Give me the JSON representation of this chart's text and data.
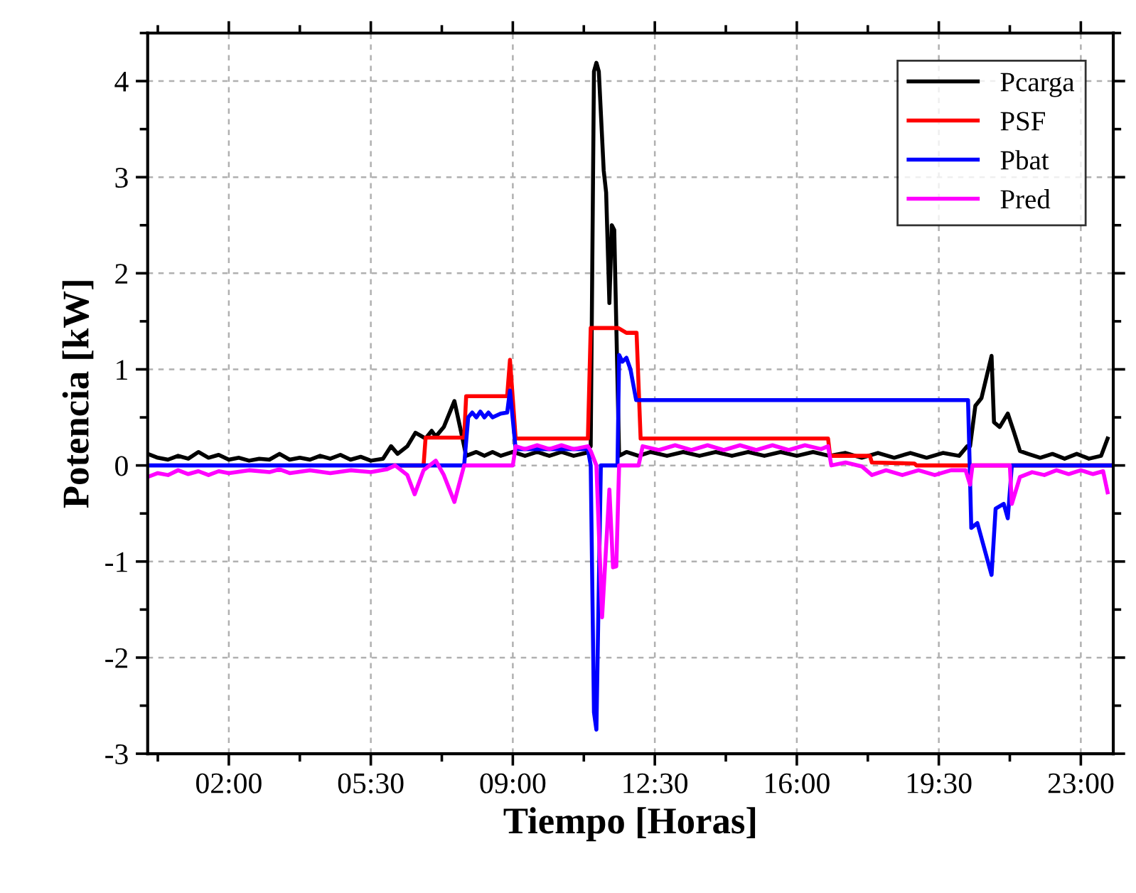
{
  "chart_data": {
    "type": "line",
    "xlabel": "Tiempo [Horas]",
    "ylabel": "Potencia [kW]",
    "xlim": [
      0,
      23.8
    ],
    "ylim": [
      -3,
      4.5
    ],
    "xticks": [
      {
        "value": 2,
        "label": "02:00"
      },
      {
        "value": 5.5,
        "label": "05:30"
      },
      {
        "value": 9,
        "label": "09:00"
      },
      {
        "value": 12.5,
        "label": "12:30"
      },
      {
        "value": 16,
        "label": "16:00"
      },
      {
        "value": 19.5,
        "label": "19:30"
      },
      {
        "value": 23,
        "label": "23:00"
      }
    ],
    "yticks": [
      -3,
      -2,
      -1,
      0,
      1,
      2,
      3,
      4
    ],
    "grid": true,
    "legend": "top right",
    "line_style": "solid",
    "marker": "none",
    "series": [
      {
        "name": "Pcarga",
        "color": "#000000",
        "x": [
          0,
          0.25,
          0.5,
          0.75,
          1.0,
          1.25,
          1.5,
          1.75,
          2.0,
          2.25,
          2.5,
          2.75,
          3.0,
          3.25,
          3.5,
          3.75,
          4.0,
          4.25,
          4.5,
          4.75,
          5.0,
          5.25,
          5.5,
          5.8,
          6.0,
          6.16,
          6.4,
          6.6,
          6.85,
          7.0,
          7.1,
          7.3,
          7.56,
          7.75,
          7.85,
          8.1,
          8.3,
          8.5,
          8.7,
          9.0,
          9.3,
          9.6,
          9.9,
          10.2,
          10.5,
          10.8,
          10.92,
          11.0,
          11.06,
          11.12,
          11.24,
          11.3,
          11.38,
          11.44,
          11.5,
          11.62,
          11.8,
          12.1,
          12.4,
          12.8,
          13.2,
          13.6,
          14.0,
          14.4,
          14.8,
          15.2,
          15.6,
          16.0,
          16.4,
          16.8,
          17.2,
          17.6,
          18.0,
          18.4,
          18.8,
          19.2,
          19.6,
          20.0,
          20.2,
          20.27,
          20.4,
          20.55,
          20.8,
          20.86,
          21.0,
          21.2,
          21.35,
          21.5,
          21.7,
          22.0,
          22.3,
          22.6,
          22.9,
          23.2,
          23.5,
          23.66
        ],
        "values": [
          0.12,
          0.08,
          0.06,
          0.1,
          0.07,
          0.14,
          0.08,
          0.11,
          0.06,
          0.08,
          0.05,
          0.07,
          0.06,
          0.12,
          0.06,
          0.08,
          0.06,
          0.1,
          0.07,
          0.11,
          0.06,
          0.09,
          0.05,
          0.07,
          0.2,
          0.12,
          0.2,
          0.34,
          0.28,
          0.36,
          0.3,
          0.4,
          0.67,
          0.3,
          0.1,
          0.14,
          0.1,
          0.14,
          0.1,
          0.14,
          0.1,
          0.14,
          0.1,
          0.14,
          0.1,
          0.13,
          0.2,
          4.1,
          4.19,
          4.1,
          3.07,
          2.84,
          1.69,
          2.5,
          2.45,
          0.1,
          0.14,
          0.1,
          0.14,
          0.1,
          0.14,
          0.1,
          0.14,
          0.1,
          0.14,
          0.1,
          0.14,
          0.1,
          0.14,
          0.1,
          0.13,
          0.08,
          0.13,
          0.08,
          0.13,
          0.08,
          0.13,
          0.1,
          0.2,
          0.2,
          0.62,
          0.7,
          1.14,
          0.45,
          0.4,
          0.54,
          0.35,
          0.15,
          0.12,
          0.08,
          0.12,
          0.07,
          0.12,
          0.07,
          0.1,
          0.28
        ]
      },
      {
        "name": "PSF",
        "color": "#ff0000",
        "x": [
          5.9,
          6.8,
          6.85,
          7.8,
          7.85,
          8.86,
          8.93,
          9.07,
          10.85,
          10.92,
          11.6,
          11.8,
          12.05,
          12.15,
          16.77,
          16.82,
          17.8,
          17.85,
          18.9,
          18.95,
          23.8
        ],
        "values": [
          0,
          0,
          0.29,
          0.29,
          0.72,
          0.72,
          1.1,
          0.28,
          0.28,
          1.43,
          1.43,
          1.38,
          1.38,
          0.28,
          0.28,
          0.1,
          0.1,
          0.03,
          0.02,
          0,
          0
        ]
      },
      {
        "name": "Pbat",
        "color": "#0000ff",
        "x": [
          0,
          7.8,
          7.9,
          8.0,
          8.1,
          8.2,
          8.3,
          8.4,
          8.5,
          8.7,
          8.86,
          8.93,
          9.07,
          10.85,
          10.92,
          11.0,
          11.06,
          11.17,
          11.58,
          11.62,
          11.7,
          11.8,
          11.9,
          12.04,
          20.22,
          20.3,
          20.45,
          20.8,
          20.9,
          21.1,
          21.2,
          21.3,
          23.8
        ],
        "values": [
          0,
          0,
          0.5,
          0.55,
          0.5,
          0.56,
          0.5,
          0.55,
          0.5,
          0.54,
          0.55,
          0.78,
          0.17,
          0.17,
          0,
          -2.57,
          -2.75,
          0,
          0,
          1.15,
          1.08,
          1.12,
          1.0,
          0.68,
          0.68,
          -0.65,
          -0.6,
          -1.14,
          -0.45,
          -0.4,
          -0.55,
          0,
          0
        ]
      },
      {
        "name": "Pred",
        "color": "#ff00ff",
        "x": [
          0,
          0.25,
          0.5,
          0.75,
          1.0,
          1.25,
          1.5,
          1.75,
          2.0,
          2.5,
          3.0,
          3.25,
          3.5,
          4.0,
          4.5,
          5.0,
          5.5,
          5.9,
          6.1,
          6.4,
          6.58,
          6.8,
          7.1,
          7.3,
          7.56,
          7.8,
          9.0,
          9.07,
          9.3,
          9.6,
          9.9,
          10.2,
          10.5,
          10.85,
          10.92,
          11.06,
          11.2,
          11.38,
          11.47,
          11.55,
          11.62,
          12.1,
          12.2,
          12.6,
          13.0,
          13.4,
          13.8,
          14.2,
          14.6,
          15.0,
          15.4,
          15.8,
          16.2,
          16.6,
          16.77,
          16.85,
          17.2,
          17.6,
          17.85,
          18.2,
          18.6,
          19.0,
          19.4,
          19.8,
          20.16,
          20.27,
          20.33,
          21.25,
          21.3,
          21.5,
          21.8,
          22.1,
          22.4,
          22.7,
          23.0,
          23.3,
          23.55,
          23.66
        ],
        "values": [
          -0.12,
          -0.08,
          -0.1,
          -0.05,
          -0.09,
          -0.06,
          -0.1,
          -0.06,
          -0.08,
          -0.05,
          -0.07,
          -0.04,
          -0.08,
          -0.05,
          -0.08,
          -0.05,
          -0.07,
          -0.04,
          0,
          -0.1,
          -0.3,
          -0.05,
          0.05,
          -0.1,
          -0.38,
          0,
          0,
          0.2,
          0.17,
          0.21,
          0.17,
          0.21,
          0.17,
          0.2,
          0.15,
          0,
          -1.58,
          -0.25,
          -1.06,
          -1.05,
          0,
          0,
          0.2,
          0.16,
          0.21,
          0.16,
          0.21,
          0.16,
          0.21,
          0.16,
          0.21,
          0.16,
          0.21,
          0.17,
          0.2,
          0,
          0.03,
          -0.01,
          -0.1,
          -0.05,
          -0.1,
          -0.05,
          -0.1,
          -0.05,
          -0.05,
          -0.2,
          0,
          0,
          -0.4,
          -0.12,
          -0.07,
          -0.1,
          -0.05,
          -0.09,
          -0.05,
          -0.09,
          -0.06,
          -0.28
        ]
      }
    ]
  }
}
